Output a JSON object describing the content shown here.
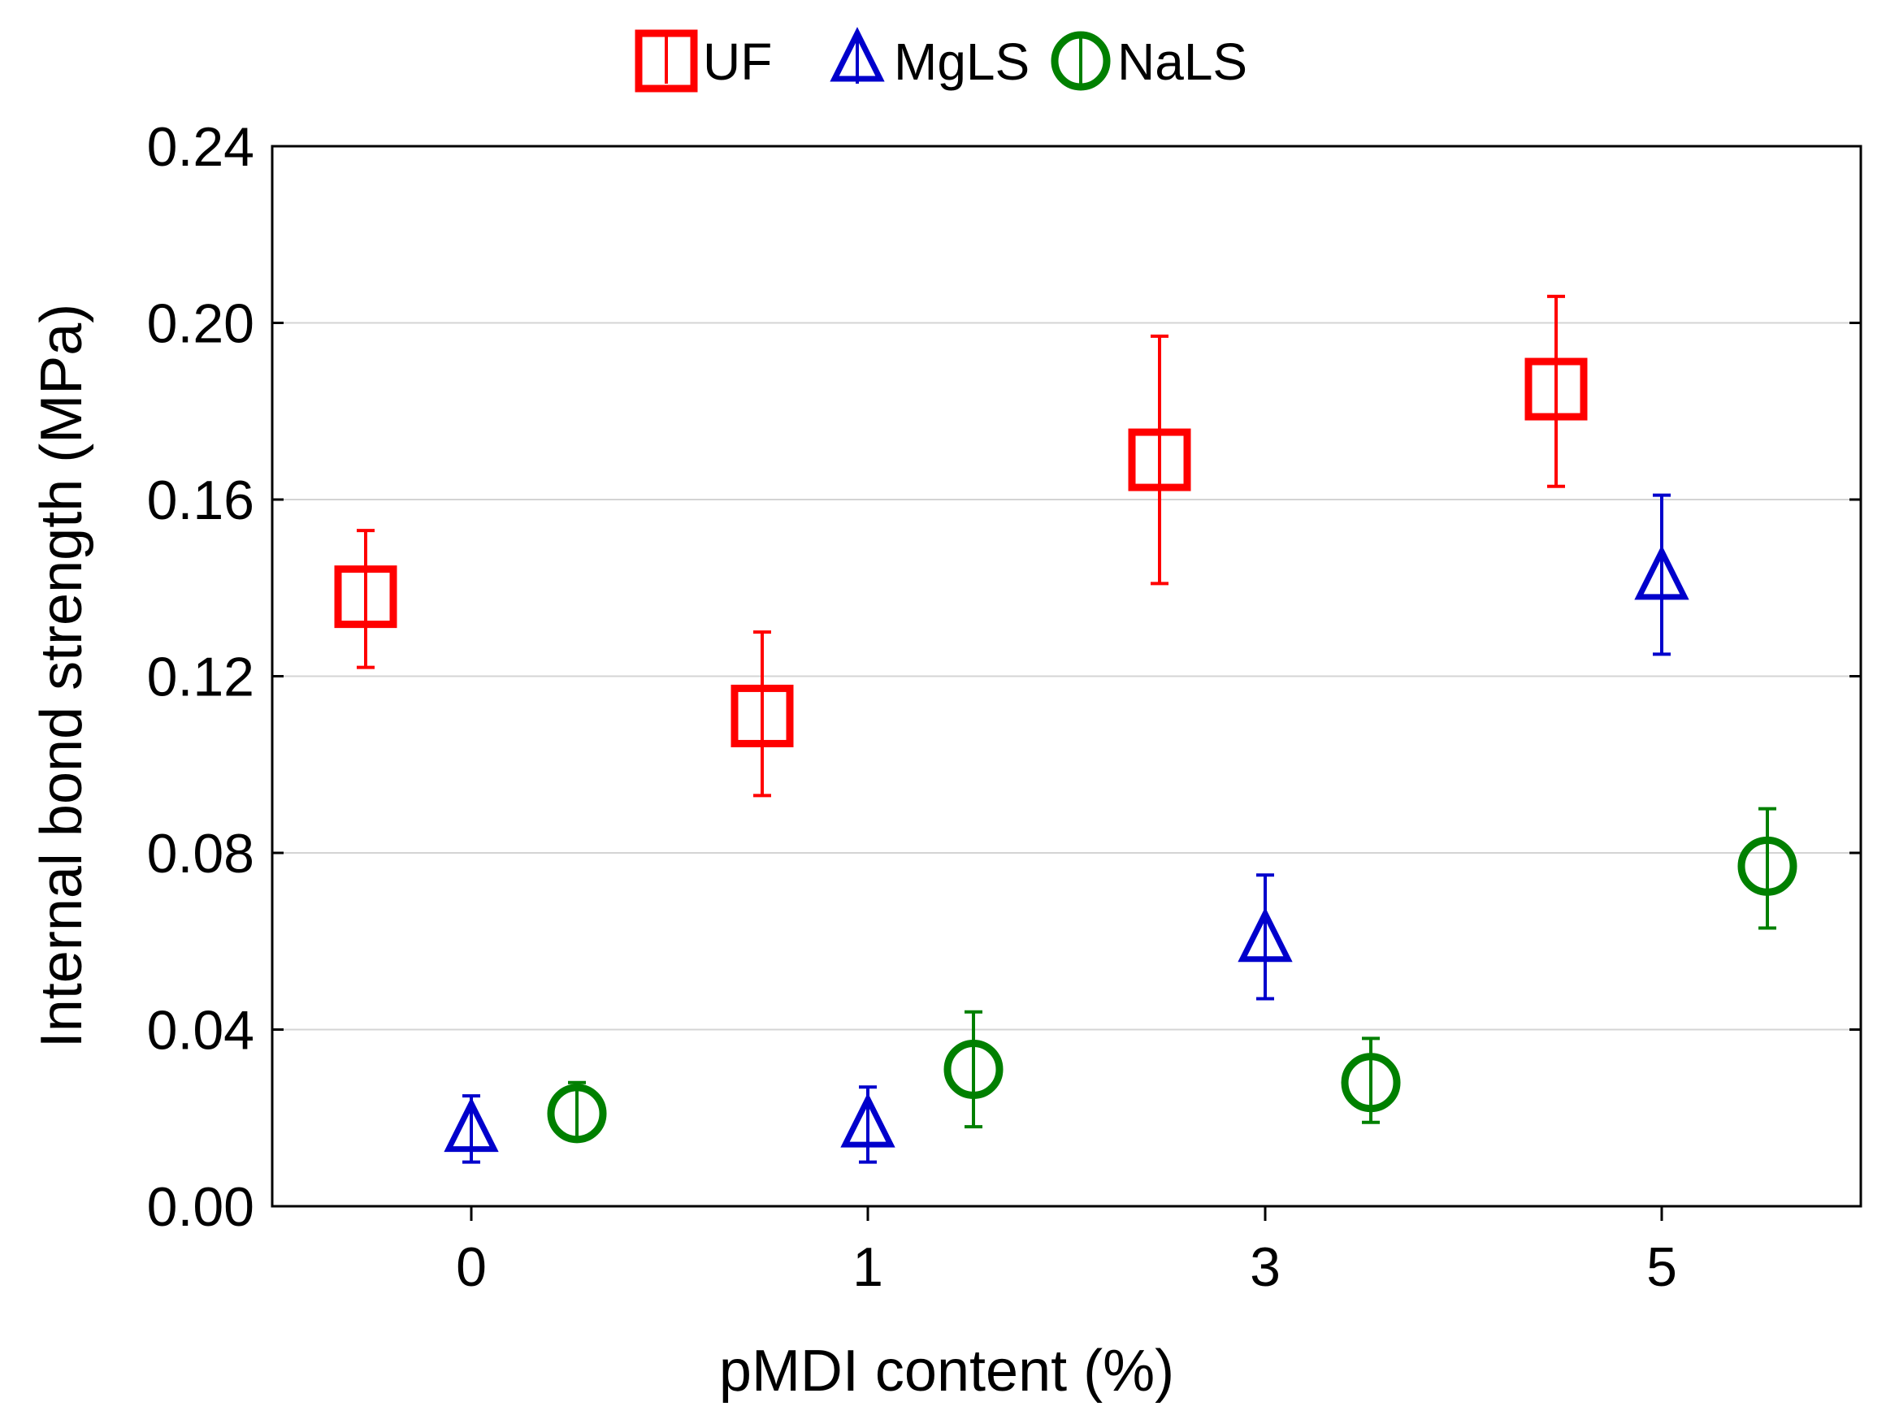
{
  "chart_data": {
    "type": "scatter",
    "title": "",
    "xlabel": "pMDI content (%)",
    "ylabel": "Internal bond strength (MPa)",
    "categories": [
      "0",
      "1",
      "3",
      "5"
    ],
    "ylim": [
      0,
      0.24
    ],
    "yticks": [
      "0.00",
      "0.04",
      "0.08",
      "0.12",
      "0.16",
      "0.20",
      "0.24"
    ],
    "grid": true,
    "legend_position": "top-center",
    "series": [
      {
        "name": "UF",
        "marker": "square",
        "color": "#ff0000",
        "values": [
          0.138,
          0.111,
          0.169,
          0.185
        ],
        "err_low": [
          0.122,
          0.093,
          0.141,
          0.163
        ],
        "err_high": [
          0.153,
          0.13,
          0.197,
          0.206
        ]
      },
      {
        "name": "MgLS",
        "marker": "triangle",
        "color": "#0000cc",
        "values": [
          0.017,
          0.018,
          0.06,
          0.142
        ],
        "err_low": [
          0.01,
          0.01,
          0.047,
          0.125
        ],
        "err_high": [
          0.025,
          0.027,
          0.075,
          0.161
        ]
      },
      {
        "name": "NaLS",
        "marker": "circle",
        "color": "#008000",
        "values": [
          0.021,
          0.031,
          0.028,
          0.077
        ],
        "err_low": [
          0.015,
          0.018,
          0.019,
          0.063
        ],
        "err_high": [
          0.028,
          0.044,
          0.038,
          0.09
        ]
      }
    ]
  }
}
